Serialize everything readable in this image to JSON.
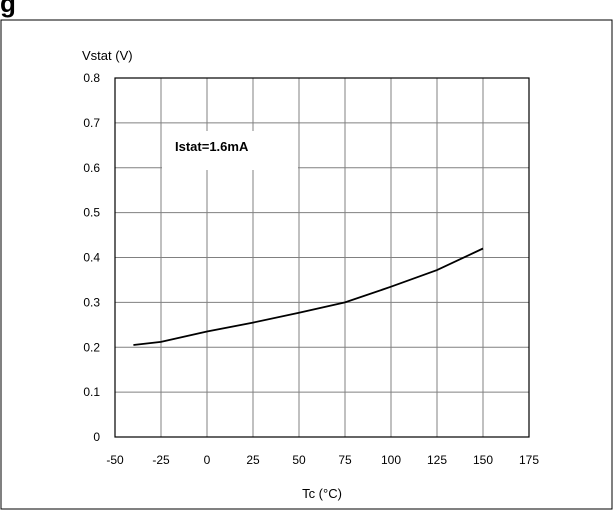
{
  "figure": {
    "header_text": "g",
    "annotation": "Istat=1.6mA"
  },
  "chart_data": {
    "type": "line",
    "title": "",
    "xlabel": "Tc (°C)",
    "ylabel": "Vstat (V)",
    "xlim": [
      -50,
      175
    ],
    "ylim": [
      0,
      0.8
    ],
    "x_ticks": [
      -50,
      -25,
      0,
      25,
      50,
      75,
      100,
      125,
      150,
      175
    ],
    "x_tick_labels": [
      "-50",
      "-25",
      "0",
      "25",
      "50",
      "75",
      "100",
      "125",
      "150",
      "175"
    ],
    "y_ticks": [
      0,
      0.1,
      0.2,
      0.3,
      0.4,
      0.5,
      0.6,
      0.7,
      0.8
    ],
    "y_tick_labels": [
      "0",
      "0.1",
      "0.2",
      "0.3",
      "0.4",
      "0.5",
      "0.6",
      "0.7",
      "0.8"
    ],
    "grid": true,
    "legend": "none",
    "line_color": "#000000",
    "grid_color": "#808080",
    "series": [
      {
        "x": [
          -40,
          -25,
          0,
          25,
          50,
          75,
          100,
          125,
          150
        ],
        "y": [
          0.205,
          0.212,
          0.235,
          0.255,
          0.277,
          0.3,
          0.335,
          0.372,
          0.42
        ]
      }
    ]
  }
}
